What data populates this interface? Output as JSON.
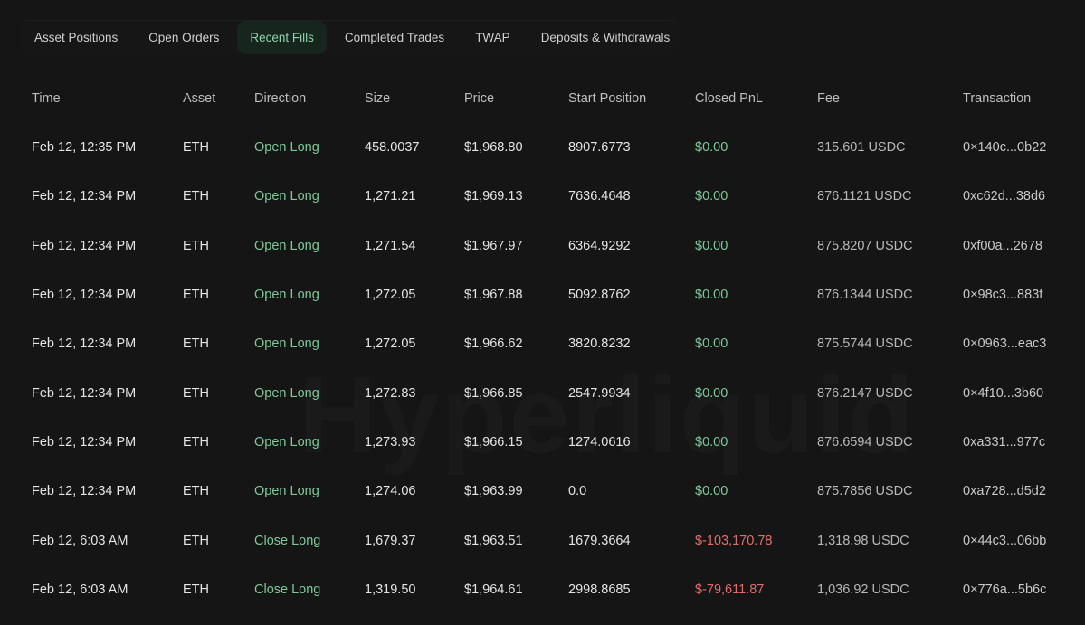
{
  "tabs": [
    {
      "label": "Asset Positions",
      "active": false
    },
    {
      "label": "Open Orders",
      "active": false
    },
    {
      "label": "Recent Fills",
      "active": true
    },
    {
      "label": "Completed Trades",
      "active": false
    },
    {
      "label": "TWAP",
      "active": false
    },
    {
      "label": "Deposits & Withdrawals",
      "active": false
    }
  ],
  "watermark": "Hyperliquid",
  "columns": [
    "Time",
    "Asset",
    "Direction",
    "Size",
    "Price",
    "Start Position",
    "Closed PnL",
    "Fee",
    "Transaction"
  ],
  "rows": [
    {
      "time": "Feb 12, 12:35 PM",
      "asset": "ETH",
      "direction": "Open Long",
      "size": "458.0037",
      "price": "$1,968.80",
      "start_position": "8907.6773",
      "closed_pnl": "$0.00",
      "pnl_sign": "zero",
      "fee": "315.601 USDC",
      "transaction": "0×140c...0b22"
    },
    {
      "time": "Feb 12, 12:34 PM",
      "asset": "ETH",
      "direction": "Open Long",
      "size": "1,271.21",
      "price": "$1,969.13",
      "start_position": "7636.4648",
      "closed_pnl": "$0.00",
      "pnl_sign": "zero",
      "fee": "876.1121 USDC",
      "transaction": "0xc62d...38d6"
    },
    {
      "time": "Feb 12, 12:34 PM",
      "asset": "ETH",
      "direction": "Open Long",
      "size": "1,271.54",
      "price": "$1,967.97",
      "start_position": "6364.9292",
      "closed_pnl": "$0.00",
      "pnl_sign": "zero",
      "fee": "875.8207 USDC",
      "transaction": "0xf00a...2678"
    },
    {
      "time": "Feb 12, 12:34 PM",
      "asset": "ETH",
      "direction": "Open Long",
      "size": "1,272.05",
      "price": "$1,967.88",
      "start_position": "5092.8762",
      "closed_pnl": "$0.00",
      "pnl_sign": "zero",
      "fee": "876.1344 USDC",
      "transaction": "0×98c3...883f"
    },
    {
      "time": "Feb 12, 12:34 PM",
      "asset": "ETH",
      "direction": "Open Long",
      "size": "1,272.05",
      "price": "$1,966.62",
      "start_position": "3820.8232",
      "closed_pnl": "$0.00",
      "pnl_sign": "zero",
      "fee": "875.5744 USDC",
      "transaction": "0×0963...eac3"
    },
    {
      "time": "Feb 12, 12:34 PM",
      "asset": "ETH",
      "direction": "Open Long",
      "size": "1,272.83",
      "price": "$1,966.85",
      "start_position": "2547.9934",
      "closed_pnl": "$0.00",
      "pnl_sign": "zero",
      "fee": "876.2147 USDC",
      "transaction": "0×4f10...3b60"
    },
    {
      "time": "Feb 12, 12:34 PM",
      "asset": "ETH",
      "direction": "Open Long",
      "size": "1,273.93",
      "price": "$1,966.15",
      "start_position": "1274.0616",
      "closed_pnl": "$0.00",
      "pnl_sign": "zero",
      "fee": "876.6594 USDC",
      "transaction": "0xa331...977c"
    },
    {
      "time": "Feb 12, 12:34 PM",
      "asset": "ETH",
      "direction": "Open Long",
      "size": "1,274.06",
      "price": "$1,963.99",
      "start_position": "0.0",
      "closed_pnl": "$0.00",
      "pnl_sign": "zero",
      "fee": "875.7856 USDC",
      "transaction": "0xa728...d5d2"
    },
    {
      "time": "Feb 12, 6:03 AM",
      "asset": "ETH",
      "direction": "Close Long",
      "size": "1,679.37",
      "price": "$1,963.51",
      "start_position": "1679.3664",
      "closed_pnl": "$-103,170.78",
      "pnl_sign": "negative",
      "fee": "1,318.98 USDC",
      "transaction": "0×44c3...06bb"
    },
    {
      "time": "Feb 12, 6:03 AM",
      "asset": "ETH",
      "direction": "Close Long",
      "size": "1,319.50",
      "price": "$1,964.61",
      "start_position": "2998.8685",
      "closed_pnl": "$-79,611.87",
      "pnl_sign": "negative",
      "fee": "1,036.92 USDC",
      "transaction": "0×776a...5b6c"
    }
  ],
  "colors": {
    "background": "#151515",
    "positive": "#7cc99a",
    "negative": "#e06c6c",
    "active_tab_bg": "#17251f"
  }
}
